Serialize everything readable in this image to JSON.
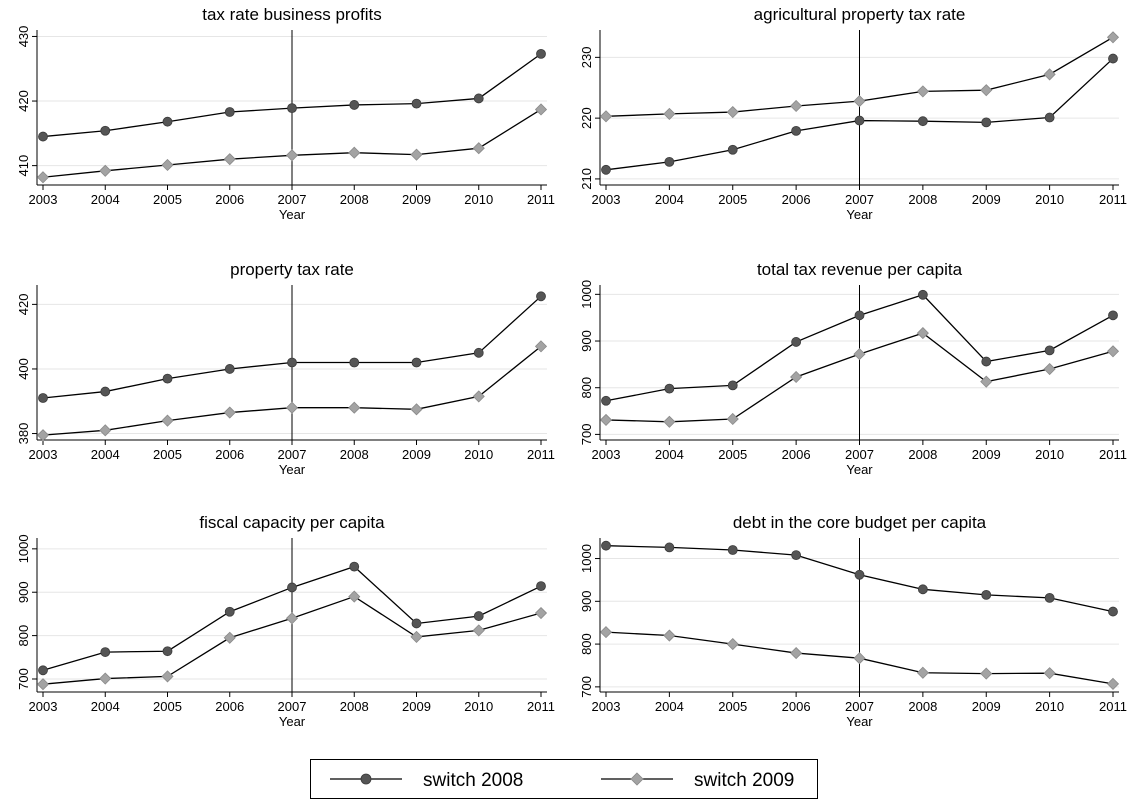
{
  "chart_data": [
    {
      "type": "line",
      "title": "tax rate business profits",
      "xlabel": "Year",
      "x": [
        2003,
        2004,
        2005,
        2006,
        2007,
        2008,
        2009,
        2010,
        2011
      ],
      "ylim": [
        407,
        431
      ],
      "yticks": [
        410,
        420,
        430
      ],
      "vline": 2007,
      "series": [
        {
          "name": "switch 2008",
          "values": [
            414.5,
            415.4,
            416.8,
            418.3,
            418.9,
            419.4,
            419.6,
            420.4,
            427.3
          ]
        },
        {
          "name": "switch 2009",
          "values": [
            408.2,
            409.2,
            410.1,
            411.0,
            411.6,
            412.0,
            411.7,
            412.7,
            418.7
          ]
        }
      ]
    },
    {
      "type": "line",
      "title": "agricultural property tax rate",
      "xlabel": "Year",
      "x": [
        2003,
        2004,
        2005,
        2006,
        2007,
        2008,
        2009,
        2010,
        2011
      ],
      "ylim": [
        209,
        234.5
      ],
      "yticks": [
        210,
        220,
        230
      ],
      "vline": 2007,
      "series": [
        {
          "name": "switch 2008",
          "values": [
            211.5,
            212.8,
            214.8,
            217.9,
            219.6,
            219.5,
            219.3,
            220.1,
            229.8
          ]
        },
        {
          "name": "switch 2009",
          "values": [
            220.3,
            220.7,
            221.0,
            222.0,
            222.8,
            224.4,
            224.6,
            227.2,
            233.3
          ]
        }
      ]
    },
    {
      "type": "line",
      "title": "property tax rate",
      "xlabel": "Year",
      "x": [
        2003,
        2004,
        2005,
        2006,
        2007,
        2008,
        2009,
        2010,
        2011
      ],
      "ylim": [
        378,
        426
      ],
      "yticks": [
        380,
        400,
        420
      ],
      "vline": 2007,
      "series": [
        {
          "name": "switch 2008",
          "values": [
            391.0,
            393.0,
            397.0,
            400.0,
            402.0,
            402.0,
            402.0,
            405.0,
            422.5
          ]
        },
        {
          "name": "switch 2009",
          "values": [
            379.5,
            381.0,
            384.0,
            386.5,
            388.0,
            388.0,
            387.5,
            391.5,
            407.0
          ]
        }
      ]
    },
    {
      "type": "line",
      "title": "total tax revenue per capita",
      "xlabel": "Year",
      "x": [
        2003,
        2004,
        2005,
        2006,
        2007,
        2008,
        2009,
        2010,
        2011
      ],
      "ylim": [
        688,
        1020
      ],
      "yticks": [
        700,
        800,
        900,
        1000
      ],
      "vline": 2007,
      "series": [
        {
          "name": "switch 2008",
          "values": [
            772,
            798,
            805,
            898,
            955,
            999,
            856,
            880,
            955
          ]
        },
        {
          "name": "switch 2009",
          "values": [
            731,
            727,
            733,
            823,
            872,
            917,
            813,
            840,
            878
          ]
        }
      ]
    },
    {
      "type": "line",
      "title": "fiscal capacity per capita",
      "xlabel": "Year",
      "x": [
        2003,
        2004,
        2005,
        2006,
        2007,
        2008,
        2009,
        2010,
        2011
      ],
      "ylim": [
        670,
        1025
      ],
      "yticks": [
        700,
        800,
        900,
        1000
      ],
      "vline": 2007,
      "series": [
        {
          "name": "switch 2008",
          "values": [
            720,
            762,
            764,
            855,
            911,
            959,
            828,
            845,
            914
          ]
        },
        {
          "name": "switch 2009",
          "values": [
            688,
            701,
            706,
            795,
            840,
            890,
            797,
            812,
            852
          ]
        }
      ]
    },
    {
      "type": "line",
      "title": "debt in the core budget per capita",
      "xlabel": "Year",
      "x": [
        2003,
        2004,
        2005,
        2006,
        2007,
        2008,
        2009,
        2010,
        2011
      ],
      "ylim": [
        688,
        1048
      ],
      "yticks": [
        700,
        800,
        900,
        1000
      ],
      "vline": 2007,
      "series": [
        {
          "name": "switch 2008",
          "values": [
            1030,
            1026,
            1020,
            1008,
            962,
            928,
            915,
            908,
            876
          ]
        },
        {
          "name": "switch 2009",
          "values": [
            828,
            820,
            800,
            779,
            767,
            733,
            731,
            732,
            707
          ]
        }
      ]
    }
  ],
  "legend": [
    {
      "label": "switch 2008",
      "marker": "circle",
      "color": "#555555"
    },
    {
      "label": "switch 2009",
      "marker": "diamond",
      "color": "#a3a3a3"
    }
  ]
}
